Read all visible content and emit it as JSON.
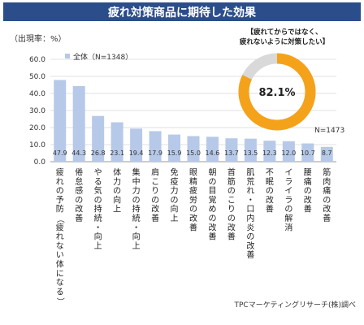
{
  "chart_data": {
    "type": "bar",
    "title": "疲れ対策商品に期待した効果",
    "ylabel": "（出現率：%）",
    "ylim": [
      0,
      60
    ],
    "yticks": [
      "0.0",
      "10.0",
      "20.0",
      "30.0",
      "40.0",
      "50.0",
      "60.0"
    ],
    "legend": "全体（N=1348）",
    "legend_position": "top-left",
    "bar_color": "#b7c9e8",
    "categories": [
      "疲れの予防（疲れない体になる）",
      "倦怠感の改善",
      "やる気の持続・向上",
      "体力の向上",
      "集中力の持続・向上",
      "肩こりの改善",
      "免疫力の向上",
      "眼精疲労の改善",
      "朝の目覚めの改善",
      "首筋のこりの改善",
      "肌荒れ・口内炎の改善",
      "不眠の改善",
      "イライラの解消",
      "腰痛の改善",
      "筋肉痛の改善"
    ],
    "values": [
      47.9,
      44.3,
      26.8,
      23.1,
      19.4,
      17.9,
      15.9,
      15.0,
      14.6,
      13.7,
      13.5,
      12.3,
      12.0,
      10.7,
      8.7
    ],
    "value_labels": [
      "47.9",
      "44.3",
      "26.8",
      "23.1",
      "19.4",
      "17.9",
      "15.9",
      "15.0",
      "14.6",
      "13.7",
      "13.5",
      "12.3",
      "12.0",
      "10.7",
      "8.7"
    ],
    "inset": {
      "type": "pie",
      "caption": "【疲れてからではなく、\n疲れないように対策したい】",
      "value": 82.1,
      "label": "82.1%",
      "n_label": "N=1473",
      "color": "#f5a21b",
      "rest_color": "#d9d9d9"
    }
  },
  "source": "TPCマーケティングリサーチ(株)調べ"
}
